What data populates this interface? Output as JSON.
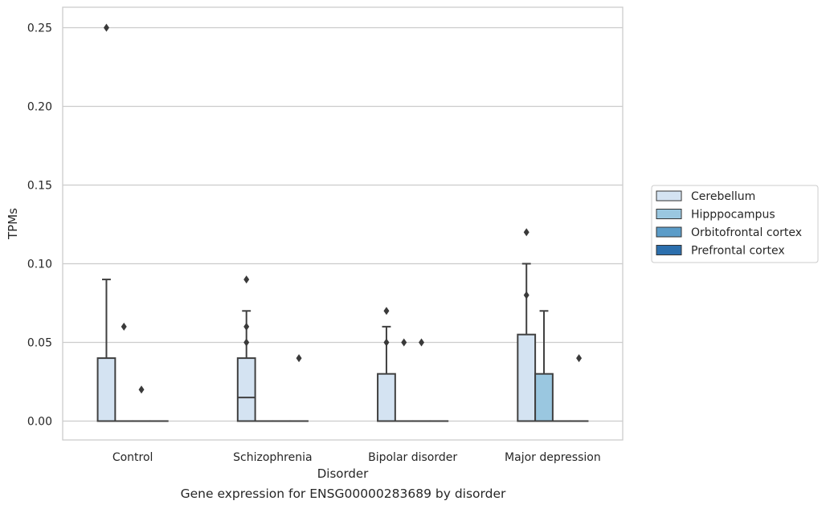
{
  "chart_data": {
    "type": "box",
    "title": "",
    "caption": "Gene expression for ENSG00000283689 by disorder",
    "xlabel": "Disorder",
    "ylabel": "TPMs",
    "ylim": [
      -0.012,
      0.263
    ],
    "yticks": [
      0.0,
      0.05,
      0.1,
      0.15,
      0.2,
      0.25
    ],
    "ytick_labels": [
      "0.00",
      "0.05",
      "0.10",
      "0.15",
      "0.20",
      "0.25"
    ],
    "grid": true,
    "legend_position": "right",
    "categories": [
      "Control",
      "Schizophrenia",
      "Bipolar disorder",
      "Major depression"
    ],
    "series": [
      {
        "name": "Cerebellum",
        "color": "#d4e3f2",
        "boxes": [
          {
            "q1": 0.0,
            "median": 0.0,
            "q3": 0.04,
            "whisker_low": 0.0,
            "whisker_high": 0.09,
            "outliers": [
              0.25
            ]
          },
          {
            "q1": 0.0,
            "median": 0.015,
            "q3": 0.04,
            "whisker_low": 0.0,
            "whisker_high": 0.07,
            "outliers": [
              0.09,
              0.06,
              0.05
            ]
          },
          {
            "q1": 0.0,
            "median": 0.0,
            "q3": 0.03,
            "whisker_low": 0.0,
            "whisker_high": 0.06,
            "outliers": [
              0.07,
              0.05
            ]
          },
          {
            "q1": 0.0,
            "median": 0.0,
            "q3": 0.055,
            "whisker_low": 0.0,
            "whisker_high": 0.1,
            "outliers": [
              0.12,
              0.08
            ]
          }
        ]
      },
      {
        "name": "Hipppocampus",
        "color": "#9ac7e0",
        "boxes": [
          {
            "q1": 0.0,
            "median": 0.0,
            "q3": 0.0,
            "whisker_low": 0.0,
            "whisker_high": 0.0,
            "outliers": [
              0.06
            ]
          },
          {
            "q1": 0.0,
            "median": 0.0,
            "q3": 0.0,
            "whisker_low": 0.0,
            "whisker_high": 0.0,
            "outliers": []
          },
          {
            "q1": 0.0,
            "median": 0.0,
            "q3": 0.0,
            "whisker_low": 0.0,
            "whisker_high": 0.0,
            "outliers": [
              0.05
            ]
          },
          {
            "q1": 0.0,
            "median": 0.0,
            "q3": 0.03,
            "whisker_low": 0.0,
            "whisker_high": 0.07,
            "outliers": []
          }
        ]
      },
      {
        "name": "Orbitofrontal cortex",
        "color": "#5b9cc8",
        "boxes": [
          {
            "q1": 0.0,
            "median": 0.0,
            "q3": 0.0,
            "whisker_low": 0.0,
            "whisker_high": 0.0,
            "outliers": [
              0.02
            ]
          },
          {
            "q1": 0.0,
            "median": 0.0,
            "q3": 0.0,
            "whisker_low": 0.0,
            "whisker_high": 0.0,
            "outliers": []
          },
          {
            "q1": 0.0,
            "median": 0.0,
            "q3": 0.0,
            "whisker_low": 0.0,
            "whisker_high": 0.0,
            "outliers": [
              0.05
            ]
          },
          {
            "q1": 0.0,
            "median": 0.0,
            "q3": 0.0,
            "whisker_low": 0.0,
            "whisker_high": 0.0,
            "outliers": []
          }
        ]
      },
      {
        "name": "Prefrontal cortex",
        "color": "#2c6fad",
        "boxes": [
          {
            "q1": 0.0,
            "median": 0.0,
            "q3": 0.0,
            "whisker_low": 0.0,
            "whisker_high": 0.0,
            "outliers": []
          },
          {
            "q1": 0.0,
            "median": 0.0,
            "q3": 0.0,
            "whisker_low": 0.0,
            "whisker_high": 0.0,
            "outliers": [
              0.04
            ]
          },
          {
            "q1": 0.0,
            "median": 0.0,
            "q3": 0.0,
            "whisker_low": 0.0,
            "whisker_high": 0.0,
            "outliers": []
          },
          {
            "q1": 0.0,
            "median": 0.0,
            "q3": 0.0,
            "whisker_low": 0.0,
            "whisker_high": 0.0,
            "outliers": [
              0.04
            ]
          }
        ]
      }
    ]
  }
}
